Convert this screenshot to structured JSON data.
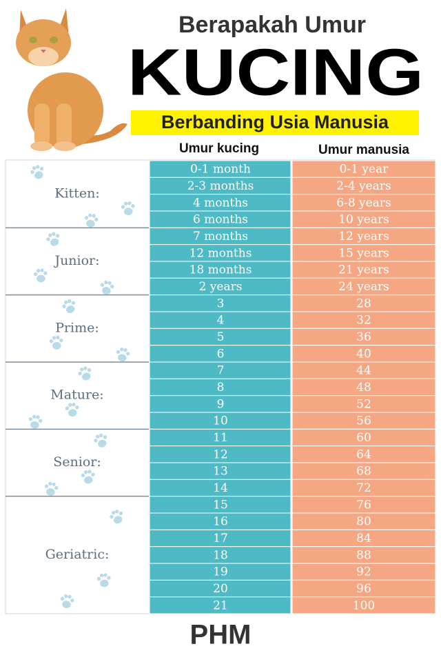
{
  "header": {
    "title_top": "Berapakah Umur",
    "title_main": "KUCING",
    "subtitle": "Berbanding Usia Manusia"
  },
  "table": {
    "columns": [
      "Umur kucing",
      "Umur manusia"
    ],
    "groups": [
      {
        "label": "Kitten:",
        "rows": [
          [
            "0-1 month",
            "0-1 year"
          ],
          [
            "2-3 months",
            "2-4 years"
          ],
          [
            "4 months",
            "6-8 years"
          ],
          [
            "6 months",
            "10 years"
          ]
        ]
      },
      {
        "label": "Junior:",
        "rows": [
          [
            "7 months",
            "12 years"
          ],
          [
            "12 months",
            "15 years"
          ],
          [
            "18 months",
            "21 years"
          ],
          [
            "2 years",
            "24 years"
          ]
        ]
      },
      {
        "label": "Prime:",
        "rows": [
          [
            "3",
            "28"
          ],
          [
            "4",
            "32"
          ],
          [
            "5",
            "36"
          ],
          [
            "6",
            "40"
          ]
        ]
      },
      {
        "label": "Mature:",
        "rows": [
          [
            "7",
            "44"
          ],
          [
            "8",
            "48"
          ],
          [
            "9",
            "52"
          ],
          [
            "10",
            "56"
          ]
        ]
      },
      {
        "label": "Senior:",
        "rows": [
          [
            "11",
            "60"
          ],
          [
            "12",
            "64"
          ],
          [
            "13",
            "68"
          ],
          [
            "14",
            "72"
          ]
        ]
      },
      {
        "label": "Geriatric:",
        "rows": [
          [
            "15",
            "76"
          ],
          [
            "16",
            "80"
          ],
          [
            "17",
            "84"
          ],
          [
            "18",
            "88"
          ],
          [
            "19",
            "92"
          ],
          [
            "20",
            "96"
          ],
          [
            "21",
            "100"
          ]
        ]
      }
    ]
  },
  "footer": "PHM"
}
